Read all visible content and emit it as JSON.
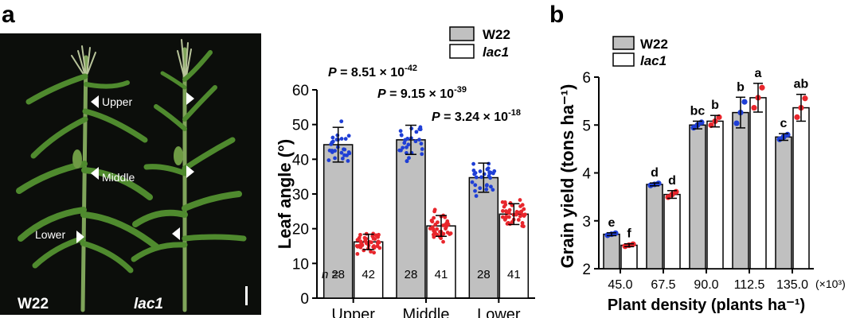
{
  "panel_a_letter": "a",
  "panel_b_letter": "b",
  "photo": {
    "annotations": [
      "Upper",
      "Middle",
      "Lower"
    ],
    "left_plant_label": "W22",
    "right_plant_label": "lac1",
    "colors": {
      "background": "#0c0e0b",
      "leaf": "#4f8a2e",
      "stalk": "#7fa45a",
      "tassel": "#b8c49a"
    }
  },
  "chart_data": [
    {
      "type": "bar",
      "categories": [
        "Upper",
        "Middle",
        "Lower"
      ],
      "ylabel": "Leaf angle (°)",
      "ylim": [
        0,
        60
      ],
      "yticks": [
        "0",
        "10",
        "20",
        "30",
        "40",
        "50",
        "60"
      ],
      "series": [
        {
          "name": "W22",
          "values": [
            44.2,
            45.6,
            34.7
          ],
          "errors": [
            5.0,
            4.2,
            4.2
          ],
          "color": "#c0c0c0",
          "dot_color": "#1f3fd6",
          "n": [
            "28",
            "28",
            "28"
          ]
        },
        {
          "name": "lac1",
          "values": [
            16.2,
            20.8,
            24.2
          ],
          "errors": [
            2.2,
            3.0,
            3.0
          ],
          "color": "#ffffff",
          "dot_color": "#e8262c",
          "n": [
            "42",
            "41",
            "41"
          ]
        }
      ],
      "n_prefix": "n =",
      "p_values": [
        {
          "label": "P",
          "text": " = 8.51 × 10",
          "exp": "-42"
        },
        {
          "label": "P",
          "text": " = 9.15 × 10",
          "exp": "-39"
        },
        {
          "label": "P",
          "text": " = 3.24 × 10",
          "exp": "-18"
        }
      ]
    },
    {
      "type": "bar",
      "categories": [
        "45.0",
        "67.5",
        "90.0",
        "112.5",
        "135.0"
      ],
      "x_unit_suffix": "(×10³)",
      "xlabel": "Plant density (plants ha⁻¹)",
      "ylabel": "Grain yield (tons ha⁻¹)",
      "ylim": [
        2,
        6
      ],
      "yticks": [
        "2",
        "3",
        "4",
        "5",
        "6"
      ],
      "series": [
        {
          "name": "W22",
          "values": [
            2.72,
            3.76,
            5.0,
            5.26,
            4.75
          ],
          "errors": [
            0.03,
            0.03,
            0.08,
            0.32,
            0.07
          ],
          "color": "#c0c0c0",
          "dot_color": "#1f3fd6",
          "letters": [
            "e",
            "d",
            "bc",
            "b",
            "c"
          ]
        },
        {
          "name": "lac1",
          "values": [
            2.49,
            3.55,
            5.08,
            5.57,
            5.36
          ],
          "errors": [
            0.03,
            0.08,
            0.12,
            0.3,
            0.28
          ],
          "color": "#ffffff",
          "dot_color": "#e8262c",
          "letters": [
            "f",
            "d",
            "b",
            "a",
            "ab"
          ]
        }
      ]
    }
  ]
}
